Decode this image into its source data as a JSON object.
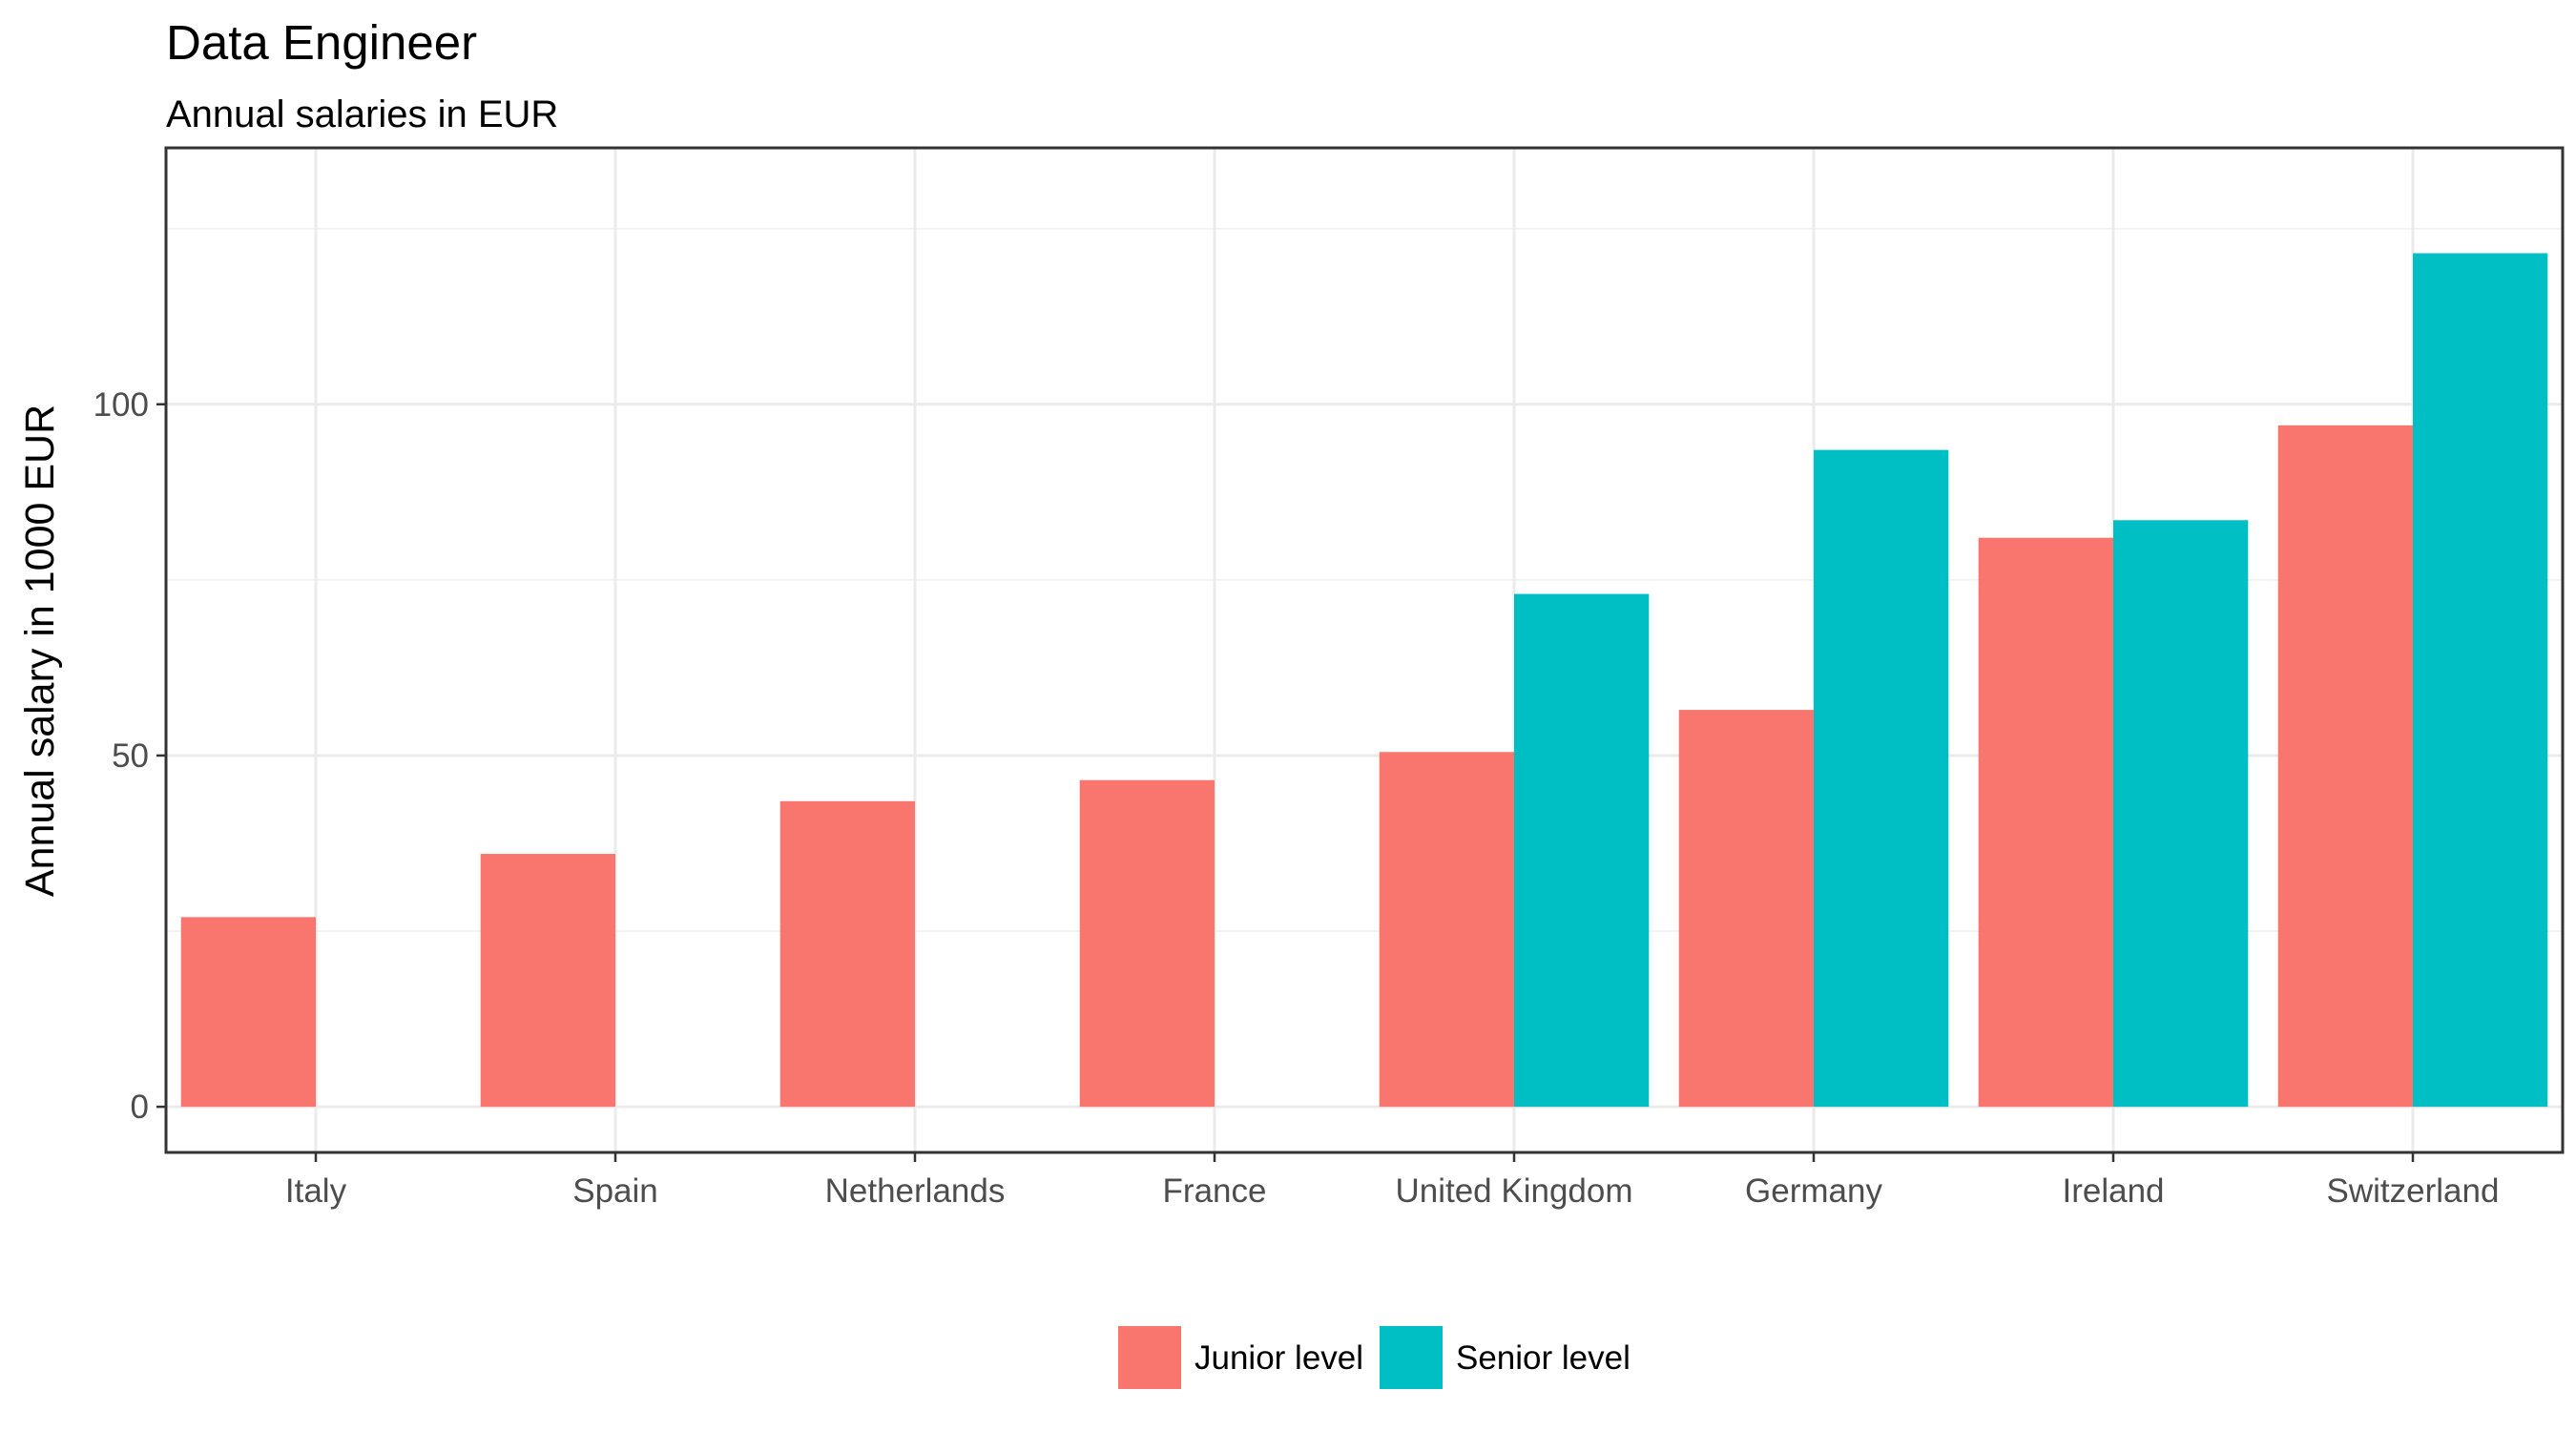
{
  "chart_data": {
    "type": "bar",
    "title": "Data Engineer",
    "subtitle": "Annual salaries in EUR",
    "xlabel": "",
    "ylabel": "Annual salary in 1000 EUR",
    "categories": [
      "Italy",
      "Spain",
      "Netherlands",
      "France",
      "United Kingdom",
      "Germany",
      "Ireland",
      "Switzerland"
    ],
    "series": [
      {
        "name": "Junior level",
        "color": "#F8766D",
        "values": [
          27,
          36,
          43.5,
          46.5,
          50.5,
          56.5,
          81,
          97
        ]
      },
      {
        "name": "Senior level",
        "color": "#00BFC4",
        "values": [
          null,
          null,
          null,
          null,
          73,
          93.5,
          83.5,
          121.5
        ]
      }
    ],
    "ylim": [
      -6.5,
      136.5
    ],
    "yticks": [
      0,
      50,
      100
    ],
    "yticks_minor": [
      25,
      75,
      125
    ],
    "grid": true,
    "legend_position": "bottom"
  }
}
